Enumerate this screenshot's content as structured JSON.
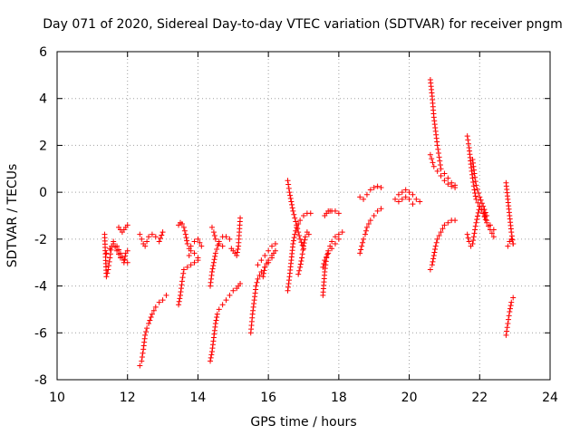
{
  "chart_data": {
    "type": "scatter",
    "title": "Day 071 of 2020, Sidereal Day-to-day VTEC variation (SDTVAR) for receiver pngm",
    "xlabel": "GPS time / hours",
    "ylabel": "SDTVAR / TECUs",
    "xlim": [
      10,
      24
    ],
    "ylim": [
      -8,
      6
    ],
    "xticks": [
      10,
      12,
      14,
      16,
      18,
      20,
      22,
      24
    ],
    "yticks": [
      -8,
      -6,
      -4,
      -2,
      0,
      2,
      4,
      6
    ],
    "grid": true,
    "marker": "+",
    "color": "#ff0000",
    "segments": [
      {
        "x": [
          11.35,
          11.4,
          11.45,
          11.5,
          11.55,
          11.6,
          11.7,
          11.8,
          11.9,
          12.0
        ],
        "y": [
          -1.8,
          -3.6,
          -3.3,
          -2.8,
          -2.3,
          -2.1,
          -2.3,
          -2.6,
          -2.9,
          -3.0
        ]
      },
      {
        "x": [
          11.4,
          11.5,
          11.6,
          11.7,
          11.8,
          11.9,
          11.95,
          12.0
        ],
        "y": [
          -2.6,
          -2.4,
          -2.2,
          -2.5,
          -2.8,
          -3.0,
          -2.6,
          -2.5
        ]
      },
      {
        "x": [
          11.75,
          11.8,
          11.85,
          11.9,
          11.95,
          12.0
        ],
        "y": [
          -1.5,
          -1.6,
          -1.7,
          -1.6,
          -1.5,
          -1.4
        ]
      },
      {
        "x": [
          12.35,
          12.4,
          12.45,
          12.5,
          12.55,
          12.6,
          12.7,
          12.8,
          12.9,
          13.0
        ],
        "y": [
          -1.8,
          -2.0,
          -2.2,
          -2.3,
          -2.1,
          -1.9,
          -1.8,
          -1.9,
          -2.1,
          -1.7
        ]
      },
      {
        "x": [
          12.35,
          12.4,
          12.45,
          12.5,
          12.55,
          12.6,
          12.7,
          12.8,
          12.9,
          13.0,
          13.1
        ],
        "y": [
          -7.4,
          -7.2,
          -6.7,
          -6.1,
          -5.8,
          -5.6,
          -5.2,
          -4.9,
          -4.7,
          -4.6,
          -4.4
        ]
      },
      {
        "x": [
          13.45,
          13.5,
          13.55,
          13.6,
          13.65,
          13.7,
          13.75,
          13.8,
          13.9,
          14.0,
          14.1
        ],
        "y": [
          -1.4,
          -1.3,
          -1.35,
          -1.5,
          -1.8,
          -2.2,
          -2.4,
          -2.3,
          -2.1,
          -2.0,
          -2.3
        ]
      },
      {
        "x": [
          13.45,
          13.5,
          13.55,
          13.6,
          13.7,
          13.8,
          13.9,
          14.0
        ],
        "y": [
          -4.8,
          -4.4,
          -3.8,
          -3.3,
          -3.2,
          -3.1,
          -3.0,
          -2.9
        ]
      },
      {
        "x": [
          13.75,
          13.8,
          13.9,
          14.0
        ],
        "y": [
          -2.7,
          -2.5,
          -2.6,
          -2.8
        ]
      },
      {
        "x": [
          14.35,
          14.4,
          14.45,
          14.5,
          14.55,
          14.6,
          14.7,
          14.8,
          14.9,
          15.0,
          15.1,
          15.15,
          15.2
        ],
        "y": [
          -7.2,
          -6.8,
          -6.2,
          -5.6,
          -5.2,
          -5.0,
          -4.8,
          -4.6,
          -4.4,
          -4.2,
          -4.1,
          -4.0,
          -3.9
        ]
      },
      {
        "x": [
          14.35,
          14.4,
          14.5,
          14.6,
          14.7,
          14.8,
          14.9
        ],
        "y": [
          -4.0,
          -3.4,
          -2.6,
          -2.1,
          -1.9,
          -1.9,
          -2.0
        ]
      },
      {
        "x": [
          14.4,
          14.45,
          14.5,
          14.6,
          14.7
        ],
        "y": [
          -1.5,
          -1.7,
          -2.0,
          -2.2,
          -2.3
        ]
      },
      {
        "x": [
          14.95,
          15.0,
          15.05,
          15.1,
          15.15,
          15.2
        ],
        "y": [
          -2.4,
          -2.5,
          -2.6,
          -2.7,
          -2.3,
          -1.1
        ]
      },
      {
        "x": [
          15.5,
          15.55,
          15.6,
          15.65,
          15.7,
          15.8,
          15.9,
          16.0,
          16.1
        ],
        "y": [
          -6.0,
          -5.2,
          -4.6,
          -4.0,
          -3.7,
          -3.4,
          -3.2,
          -3.0,
          -2.8
        ]
      },
      {
        "x": [
          15.7,
          15.8,
          15.9,
          16.0,
          16.1,
          16.2
        ],
        "y": [
          -3.1,
          -2.9,
          -2.7,
          -2.5,
          -2.3,
          -2.2
        ]
      },
      {
        "x": [
          15.85,
          15.9,
          16.0,
          16.1,
          16.15,
          16.2
        ],
        "y": [
          -3.6,
          -3.2,
          -2.9,
          -2.7,
          -2.6,
          -2.5
        ]
      },
      {
        "x": [
          16.55,
          16.6,
          16.65,
          16.7,
          16.75,
          16.8,
          16.9,
          17.0,
          17.1,
          17.2
        ],
        "y": [
          -4.2,
          -3.6,
          -2.9,
          -2.2,
          -1.8,
          -1.5,
          -1.2,
          -1.0,
          -0.9,
          -0.9
        ]
      },
      {
        "x": [
          16.55,
          16.6,
          16.65,
          16.7,
          16.8,
          16.9,
          17.0
        ],
        "y": [
          0.5,
          0.0,
          -0.4,
          -0.8,
          -1.4,
          -2.0,
          -2.4
        ]
      },
      {
        "x": [
          16.85,
          16.9,
          16.95,
          17.0,
          17.05,
          17.1,
          17.15
        ],
        "y": [
          -3.5,
          -3.2,
          -2.8,
          -2.3,
          -1.9,
          -1.7,
          -1.8
        ]
      },
      {
        "x": [
          17.55,
          17.6,
          17.65,
          17.7,
          17.75,
          17.8,
          17.9,
          18.0,
          18.1
        ],
        "y": [
          -4.4,
          -3.4,
          -2.8,
          -2.5,
          -2.3,
          -2.1,
          -1.9,
          -1.8,
          -1.7
        ]
      },
      {
        "x": [
          17.6,
          17.65,
          17.7,
          17.75,
          17.8,
          17.9,
          18.0
        ],
        "y": [
          -1.0,
          -0.9,
          -0.8,
          -0.8,
          -0.8,
          -0.8,
          -0.9
        ]
      },
      {
        "x": [
          17.55,
          17.6,
          17.7,
          17.8,
          17.9,
          18.0
        ],
        "y": [
          -3.2,
          -2.9,
          -2.6,
          -2.4,
          -2.2,
          -2.0
        ]
      },
      {
        "x": [
          18.6,
          18.65,
          18.7,
          18.75,
          18.8,
          18.9,
          19.0,
          19.1,
          19.2
        ],
        "y": [
          -2.6,
          -2.3,
          -2.0,
          -1.8,
          -1.5,
          -1.2,
          -1.0,
          -0.8,
          -0.7
        ]
      },
      {
        "x": [
          18.6,
          18.7,
          18.8,
          18.9,
          19.0,
          19.1,
          19.2
        ],
        "y": [
          -0.2,
          -0.3,
          -0.1,
          0.1,
          0.2,
          0.25,
          0.2
        ]
      },
      {
        "x": [
          19.6,
          19.7,
          19.8,
          19.9,
          20.0,
          20.1,
          20.2,
          20.3
        ],
        "y": [
          -0.3,
          -0.1,
          0.0,
          0.1,
          0.0,
          -0.1,
          -0.3,
          -0.4
        ]
      },
      {
        "x": [
          19.7,
          19.8,
          19.9,
          20.0,
          20.1
        ],
        "y": [
          -0.4,
          -0.3,
          -0.2,
          -0.3,
          -0.5
        ]
      },
      {
        "x": [
          20.6,
          20.65,
          20.7,
          20.75,
          20.8,
          20.85,
          20.9,
          21.0,
          21.1,
          21.2,
          21.3
        ],
        "y": [
          4.8,
          4.1,
          3.2,
          2.6,
          2.0,
          1.5,
          1.0,
          0.8,
          0.6,
          0.4,
          0.3
        ]
      },
      {
        "x": [
          20.6,
          20.7,
          20.8,
          20.9,
          21.0,
          21.1,
          21.2,
          21.3
        ],
        "y": [
          1.6,
          1.1,
          0.9,
          0.7,
          0.5,
          0.35,
          0.25,
          0.2
        ]
      },
      {
        "x": [
          20.6,
          20.65,
          20.7,
          20.75,
          20.8,
          20.9,
          21.0,
          21.1,
          21.2,
          21.3
        ],
        "y": [
          -3.3,
          -3.1,
          -2.7,
          -2.3,
          -2.0,
          -1.7,
          -1.4,
          -1.3,
          -1.2,
          -1.2
        ]
      },
      {
        "x": [
          21.65,
          21.7,
          21.75,
          21.8,
          21.85,
          21.9,
          22.0,
          22.1,
          22.2,
          22.3,
          22.4
        ],
        "y": [
          2.4,
          1.9,
          1.2,
          0.6,
          0.1,
          -0.3,
          -0.6,
          -0.9,
          -1.2,
          -1.4,
          -1.6
        ]
      },
      {
        "x": [
          21.65,
          21.7,
          21.75,
          21.8,
          21.9,
          22.0,
          22.1,
          22.2,
          22.3,
          22.4
        ],
        "y": [
          -1.8,
          -2.1,
          -2.3,
          -2.2,
          -1.3,
          -0.6,
          -0.9,
          -1.3,
          -1.6,
          -1.9
        ]
      },
      {
        "x": [
          21.8,
          21.85,
          21.9,
          22.0,
          22.1,
          22.2
        ],
        "y": [
          1.4,
          0.8,
          0.3,
          -0.2,
          -0.6,
          -1.0
        ]
      },
      {
        "x": [
          22.75,
          22.8,
          22.85,
          22.9,
          22.95
        ],
        "y": [
          0.4,
          -0.3,
          -1.0,
          -1.7,
          -2.2
        ]
      },
      {
        "x": [
          22.75,
          22.8,
          22.85,
          22.9,
          22.95
        ],
        "y": [
          -6.1,
          -5.6,
          -5.1,
          -4.7,
          -4.5
        ]
      },
      {
        "x": [
          22.8,
          22.85,
          22.9,
          22.95
        ],
        "y": [
          -2.3,
          -2.1,
          -2.0,
          -2.2
        ]
      }
    ]
  }
}
